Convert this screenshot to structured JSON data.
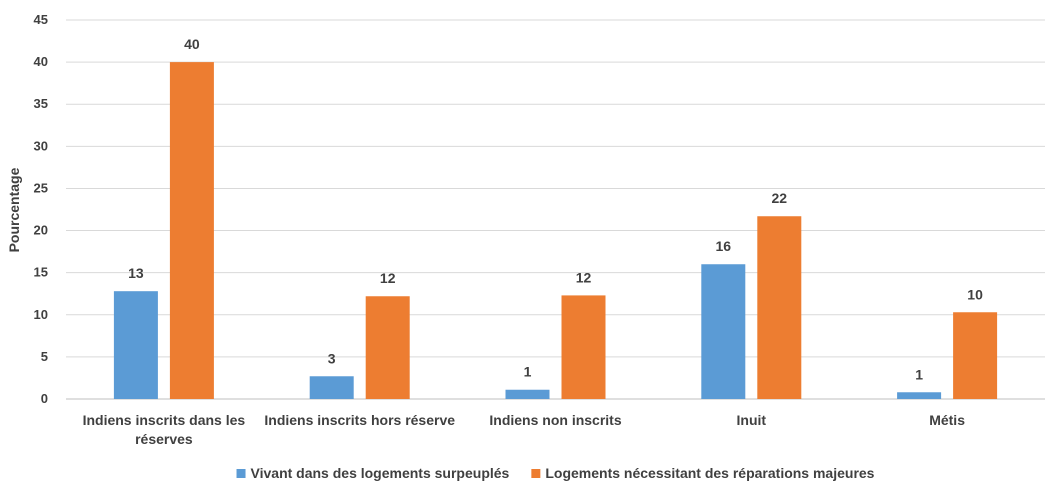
{
  "chart_data": {
    "type": "bar",
    "title": "",
    "xlabel": "",
    "ylabel": "Pourcentage",
    "ylim": [
      0,
      45
    ],
    "ytick_step": 5,
    "grid": true,
    "legend_position": "bottom",
    "categories": [
      [
        "Indiens inscrits dans les",
        "réserves"
      ],
      [
        "Indiens inscrits hors réserve"
      ],
      [
        "Indiens non inscrits"
      ],
      [
        "Inuit"
      ],
      [
        "Métis"
      ]
    ],
    "series": [
      {
        "name": "Vivant dans des logements surpeuplés",
        "color": "#5b9bd5",
        "values": [
          12.8,
          2.7,
          1.1,
          16.0,
          0.8
        ],
        "labels": [
          "13",
          "3",
          "1",
          "16",
          "1"
        ]
      },
      {
        "name": "Logements nécessitant des réparations majeures",
        "color": "#ed7d31",
        "values": [
          40.0,
          12.2,
          12.3,
          21.7,
          10.3
        ],
        "labels": [
          "40",
          "12",
          "12",
          "22",
          "10"
        ]
      }
    ]
  }
}
